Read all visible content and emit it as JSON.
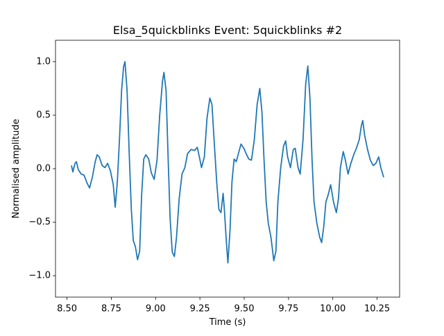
{
  "chart_data": {
    "type": "line",
    "title": "Elsa_5quickblinks Event: 5quickblinks #2",
    "xlabel": "Time (s)",
    "ylabel": "Normalised amplitude",
    "color": "#1f77b4",
    "x": [
      8.525,
      8.533,
      8.545,
      8.553,
      8.564,
      8.58,
      8.596,
      8.612,
      8.627,
      8.643,
      8.659,
      8.67,
      8.682,
      8.698,
      8.714,
      8.729,
      8.745,
      8.761,
      8.772,
      8.784,
      8.796,
      8.808,
      8.819,
      8.827,
      8.839,
      8.851,
      8.863,
      8.874,
      8.886,
      8.898,
      8.91,
      8.921,
      8.933,
      8.945,
      8.961,
      8.976,
      8.992,
      9.008,
      9.023,
      9.039,
      9.047,
      9.059,
      9.071,
      9.082,
      9.094,
      9.106,
      9.118,
      9.133,
      9.149,
      9.165,
      9.18,
      9.2,
      9.22,
      9.235,
      9.247,
      9.259,
      9.275,
      9.29,
      9.306,
      9.318,
      9.33,
      9.345,
      9.357,
      9.369,
      9.381,
      9.388,
      9.4,
      9.408,
      9.42,
      9.431,
      9.443,
      9.455,
      9.467,
      9.482,
      9.498,
      9.514,
      9.526,
      9.541,
      9.557,
      9.573,
      9.588,
      9.6,
      9.612,
      9.624,
      9.636,
      9.651,
      9.667,
      9.679,
      9.69,
      9.706,
      9.722,
      9.734,
      9.745,
      9.761,
      9.777,
      9.788,
      9.804,
      9.816,
      9.832,
      9.847,
      9.859,
      9.871,
      9.883,
      9.894,
      9.91,
      9.926,
      9.937,
      9.949,
      9.961,
      9.973,
      9.988,
      10.004,
      10.02,
      10.032,
      10.043,
      10.059,
      10.071,
      10.086,
      10.102,
      10.118,
      10.133,
      10.149,
      10.161,
      10.169,
      10.18,
      10.196,
      10.212,
      10.228,
      10.243,
      10.259,
      10.271,
      10.287
    ],
    "values": [
      0.03,
      -0.03,
      0.05,
      0.065,
      -0.01,
      -0.05,
      -0.06,
      -0.13,
      -0.18,
      -0.08,
      0.065,
      0.13,
      0.11,
      0.03,
      0.01,
      0.05,
      -0.02,
      -0.15,
      -0.36,
      -0.12,
      0.27,
      0.73,
      0.95,
      1.0,
      0.73,
      0.14,
      -0.38,
      -0.67,
      -0.73,
      -0.85,
      -0.77,
      -0.25,
      0.09,
      0.13,
      0.09,
      -0.04,
      -0.1,
      0.08,
      0.5,
      0.82,
      0.9,
      0.73,
      0.08,
      -0.47,
      -0.78,
      -0.82,
      -0.64,
      -0.28,
      -0.05,
      0.01,
      0.14,
      0.18,
      0.17,
      0.2,
      0.11,
      0.01,
      0.11,
      0.47,
      0.66,
      0.6,
      0.27,
      -0.13,
      -0.38,
      -0.41,
      -0.23,
      -0.38,
      -0.7,
      -0.88,
      -0.57,
      -0.12,
      0.09,
      0.065,
      0.14,
      0.23,
      0.19,
      0.13,
      0.09,
      0.08,
      0.27,
      0.6,
      0.75,
      0.53,
      0.08,
      -0.31,
      -0.51,
      -0.64,
      -0.86,
      -0.77,
      -0.31,
      0.01,
      0.21,
      0.26,
      0.11,
      0.01,
      0.18,
      0.19,
      0.01,
      -0.05,
      0.27,
      0.79,
      0.96,
      0.66,
      0.08,
      -0.31,
      -0.51,
      -0.64,
      -0.69,
      -0.54,
      -0.31,
      -0.25,
      -0.15,
      -0.31,
      -0.41,
      -0.28,
      0.01,
      0.16,
      0.08,
      -0.05,
      0.05,
      0.13,
      0.19,
      0.27,
      0.4,
      0.45,
      0.31,
      0.18,
      0.08,
      0.03,
      0.05,
      0.11,
      0.01,
      -0.08
    ],
    "xlim": [
      8.435,
      10.377
    ],
    "ylim": [
      -1.2,
      1.2
    ],
    "xticks": [
      {
        "value": 8.5,
        "label": "8.50"
      },
      {
        "value": 8.75,
        "label": "8.75"
      },
      {
        "value": 9.0,
        "label": "9.00"
      },
      {
        "value": 9.25,
        "label": "9.25"
      },
      {
        "value": 9.5,
        "label": "9.50"
      },
      {
        "value": 9.75,
        "label": "9.75"
      },
      {
        "value": 10.0,
        "label": "10.00"
      },
      {
        "value": 10.25,
        "label": "10.25"
      }
    ],
    "yticks": [
      {
        "value": -1.0,
        "label": "−1.0"
      },
      {
        "value": -0.5,
        "label": "−0.5"
      },
      {
        "value": 0.0,
        "label": "0.0"
      },
      {
        "value": 0.5,
        "label": "0.5"
      },
      {
        "value": 1.0,
        "label": "1.0"
      }
    ],
    "grid": false
  }
}
